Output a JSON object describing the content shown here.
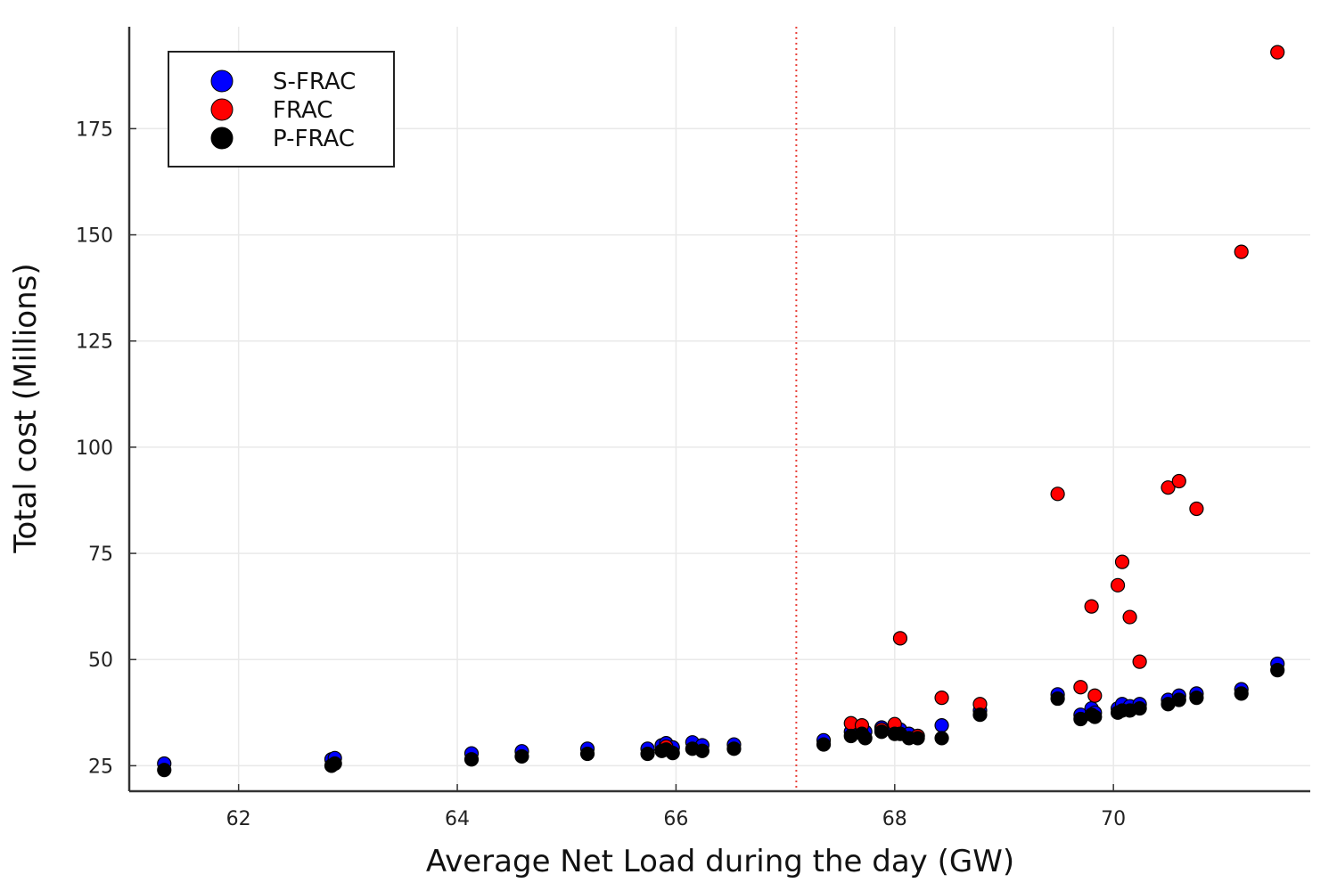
{
  "chart_data": {
    "type": "scatter",
    "title": "",
    "xlabel": "Average Net Load during the day (GW)",
    "ylabel": "Total cost (Millions)",
    "xlim": [
      61.0,
      71.8
    ],
    "ylim": [
      19.0,
      199.0
    ],
    "xticks": [
      62,
      64,
      66,
      68,
      70
    ],
    "yticks": [
      25,
      50,
      75,
      100,
      125,
      150,
      175
    ],
    "grid": true,
    "legend_position": "top-left",
    "reference_line": {
      "orientation": "vertical",
      "x": 67.1,
      "color": "#e8413a",
      "style": "dotted"
    },
    "series": [
      {
        "name": "S-FRAC",
        "color": "#0000ff",
        "points": [
          [
            61.32,
            25.5
          ],
          [
            62.85,
            26.5
          ],
          [
            62.88,
            26.8
          ],
          [
            64.13,
            27.9
          ],
          [
            64.59,
            28.4
          ],
          [
            65.19,
            29.0
          ],
          [
            65.74,
            29.0
          ],
          [
            65.87,
            29.8
          ],
          [
            65.91,
            30.3
          ],
          [
            65.97,
            29.3
          ],
          [
            66.15,
            30.5
          ],
          [
            66.24,
            29.8
          ],
          [
            66.53,
            30.0
          ],
          [
            67.35,
            31.0
          ],
          [
            67.6,
            33.0
          ],
          [
            67.7,
            34.0
          ],
          [
            67.73,
            33.0
          ],
          [
            67.88,
            34.0
          ],
          [
            68.0,
            33.5
          ],
          [
            68.05,
            33.5
          ],
          [
            68.13,
            32.5
          ],
          [
            68.21,
            32.0
          ],
          [
            68.43,
            34.5
          ],
          [
            68.78,
            38.0
          ],
          [
            69.49,
            41.8
          ],
          [
            69.7,
            37.0
          ],
          [
            69.8,
            38.5
          ],
          [
            69.83,
            37.5
          ],
          [
            70.04,
            38.5
          ],
          [
            70.08,
            39.5
          ],
          [
            70.15,
            39.0
          ],
          [
            70.24,
            39.5
          ],
          [
            70.5,
            40.5
          ],
          [
            70.6,
            41.5
          ],
          [
            70.76,
            42.0
          ],
          [
            71.17,
            43.0
          ],
          [
            71.5,
            49.0
          ]
        ]
      },
      {
        "name": "FRAC",
        "color": "#ff0000",
        "points": [
          [
            65.91,
            29.5
          ],
          [
            67.6,
            35.0
          ],
          [
            67.7,
            34.5
          ],
          [
            67.88,
            33.5
          ],
          [
            68.0,
            34.8
          ],
          [
            68.05,
            55.0
          ],
          [
            68.21,
            32.0
          ],
          [
            68.43,
            41.0
          ],
          [
            68.78,
            39.5
          ],
          [
            69.49,
            89.0
          ],
          [
            69.7,
            43.5
          ],
          [
            69.8,
            62.5
          ],
          [
            69.83,
            41.5
          ],
          [
            70.04,
            67.5
          ],
          [
            70.08,
            73.0
          ],
          [
            70.15,
            60.0
          ],
          [
            70.24,
            49.5
          ],
          [
            70.5,
            90.5
          ],
          [
            70.6,
            92.0
          ],
          [
            70.76,
            85.5
          ],
          [
            71.17,
            146.0
          ],
          [
            71.5,
            193.0
          ]
        ]
      },
      {
        "name": "P-FRAC",
        "color": "#000000",
        "points": [
          [
            61.32,
            24.0
          ],
          [
            62.85,
            25.0
          ],
          [
            62.88,
            25.5
          ],
          [
            64.13,
            26.5
          ],
          [
            64.59,
            27.2
          ],
          [
            65.19,
            27.8
          ],
          [
            65.74,
            27.8
          ],
          [
            65.87,
            28.5
          ],
          [
            65.91,
            28.8
          ],
          [
            65.97,
            28.0
          ],
          [
            66.15,
            29.0
          ],
          [
            66.24,
            28.5
          ],
          [
            66.53,
            29.0
          ],
          [
            67.35,
            30.0
          ],
          [
            67.6,
            32.0
          ],
          [
            67.7,
            32.5
          ],
          [
            67.73,
            31.5
          ],
          [
            67.88,
            33.0
          ],
          [
            68.0,
            32.5
          ],
          [
            68.05,
            32.5
          ],
          [
            68.13,
            31.5
          ],
          [
            68.21,
            31.5
          ],
          [
            68.43,
            31.5
          ],
          [
            68.78,
            37.0
          ],
          [
            69.49,
            40.8
          ],
          [
            69.7,
            36.0
          ],
          [
            69.8,
            37.0
          ],
          [
            69.83,
            36.5
          ],
          [
            70.04,
            37.5
          ],
          [
            70.08,
            38.0
          ],
          [
            70.15,
            38.0
          ],
          [
            70.24,
            38.5
          ],
          [
            70.5,
            39.5
          ],
          [
            70.6,
            40.5
          ],
          [
            70.76,
            41.0
          ],
          [
            71.17,
            42.0
          ],
          [
            71.5,
            47.5
          ]
        ]
      }
    ]
  }
}
